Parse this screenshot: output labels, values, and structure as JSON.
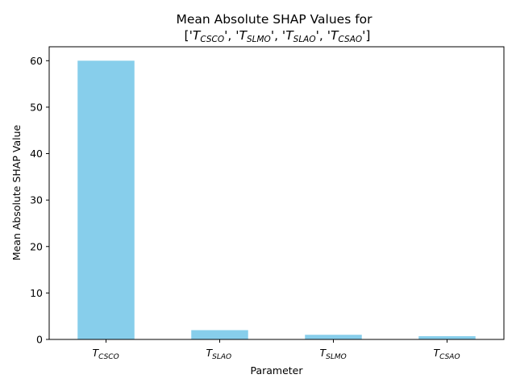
{
  "chart_data": {
    "type": "bar",
    "title": {
      "line1": "Mean Absolute SHAP Values for",
      "line2_parts": [
        {
          "text": "['",
          "style": "normal"
        },
        {
          "text": "T",
          "style": "italic"
        },
        {
          "text": "CSCO",
          "style": "sub"
        },
        {
          "text": "', '",
          "style": "normal"
        },
        {
          "text": "T",
          "style": "italic"
        },
        {
          "text": "SLMO",
          "style": "sub"
        },
        {
          "text": "', '",
          "style": "normal"
        },
        {
          "text": "T",
          "style": "italic"
        },
        {
          "text": "SLAO",
          "style": "sub"
        },
        {
          "text": "', '",
          "style": "normal"
        },
        {
          "text": "T",
          "style": "italic"
        },
        {
          "text": "CSAO",
          "style": "sub"
        },
        {
          "text": "']",
          "style": "normal"
        }
      ]
    },
    "xlabel": "Parameter",
    "ylabel": "Mean Absolute SHAP Value",
    "categories": [
      {
        "main": "T",
        "sub": "CSCO"
      },
      {
        "main": "T",
        "sub": "SLAO"
      },
      {
        "main": "T",
        "sub": "SLMO"
      },
      {
        "main": "T",
        "sub": "CSAO"
      }
    ],
    "values": [
      60.0,
      2.0,
      1.0,
      0.7
    ],
    "ylim": [
      0,
      63
    ],
    "yticks": [
      0,
      10,
      20,
      30,
      40,
      50,
      60
    ],
    "bar_color": "#87CEEB",
    "grid": false,
    "legend": null
  }
}
